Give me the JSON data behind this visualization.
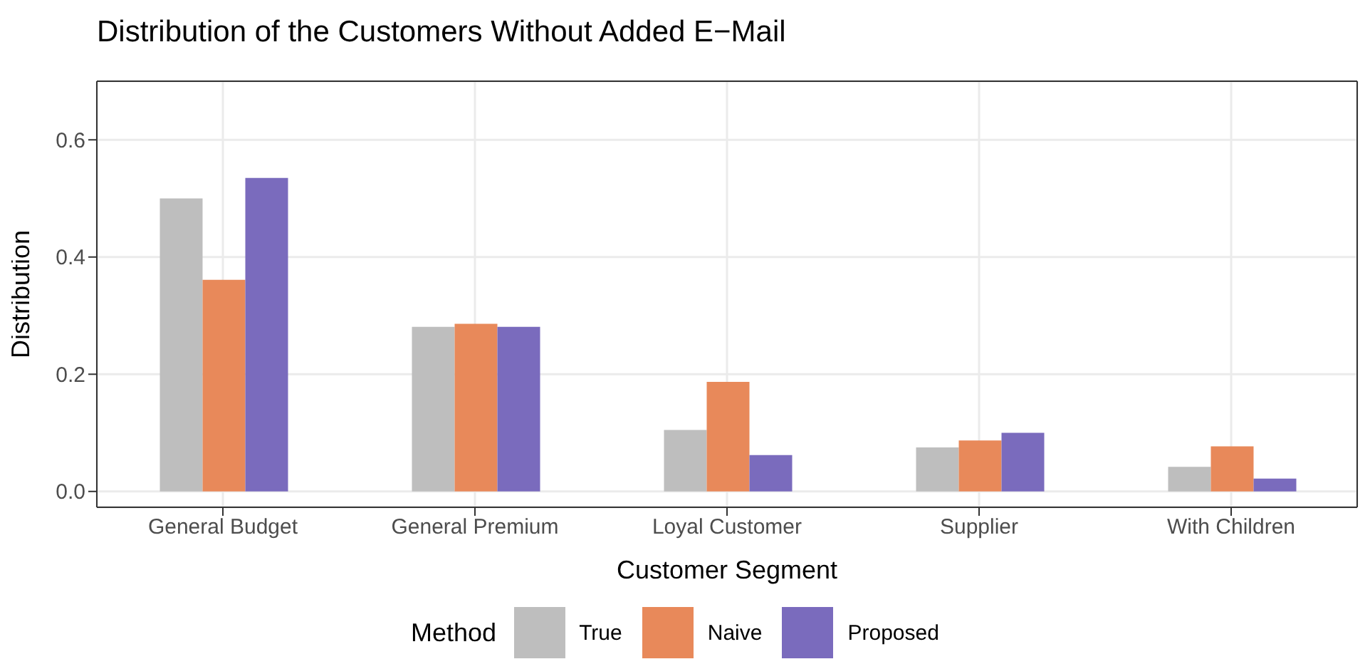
{
  "chart_data": {
    "type": "bar",
    "title": "Distribution of the Customers Without Added E−Mail",
    "xlabel": "Customer Segment",
    "ylabel": "Distribution",
    "legend_title": "Method",
    "categories": [
      "General Budget",
      "General Premium",
      "Loyal Customer",
      "Supplier",
      "With Children"
    ],
    "series": [
      {
        "name": "True",
        "color": "#bebebe",
        "values": [
          0.5,
          0.281,
          0.105,
          0.075,
          0.042
        ]
      },
      {
        "name": "Naive",
        "color": "#e8895a",
        "values": [
          0.361,
          0.286,
          0.187,
          0.087,
          0.077
        ]
      },
      {
        "name": "Proposed",
        "color": "#7a6bbd",
        "values": [
          0.535,
          0.281,
          0.062,
          0.1,
          0.022
        ]
      }
    ],
    "ylim": [
      -0.027,
      0.7
    ],
    "yticks": [
      {
        "value": 0,
        "label": "0.0"
      },
      {
        "value": 0.2,
        "label": "0.2"
      },
      {
        "value": 0.4,
        "label": "0.4"
      },
      {
        "value": 0.6,
        "label": "0.6"
      }
    ],
    "grid": true,
    "legend": "bottom"
  }
}
